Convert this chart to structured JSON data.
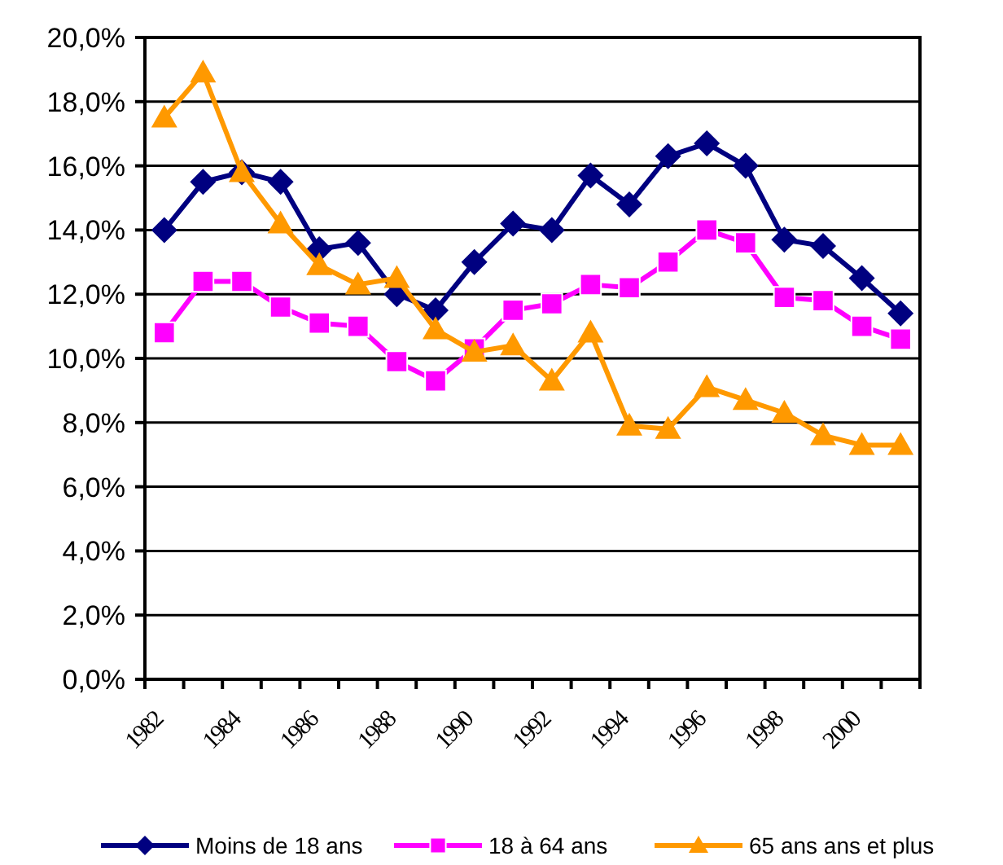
{
  "chart_data": {
    "type": "line",
    "categories": [
      "1982",
      null,
      "1984",
      null,
      "1986",
      null,
      "1988",
      null,
      "1990",
      null,
      "1992",
      null,
      "1994",
      null,
      "1996",
      null,
      "1998",
      null,
      "2000",
      null
    ],
    "series": [
      {
        "name": "Moins de 18 ans",
        "color": "#000080",
        "marker": "diamond",
        "values": [
          14.0,
          15.5,
          15.8,
          15.5,
          13.4,
          13.6,
          12.0,
          11.5,
          13.0,
          14.2,
          14.0,
          15.7,
          14.8,
          16.3,
          16.7,
          16.0,
          13.7,
          13.5,
          12.5,
          11.4
        ]
      },
      {
        "name": "18 à 64 ans",
        "color": "#ff00ff",
        "marker": "square",
        "values": [
          10.8,
          12.4,
          12.4,
          11.6,
          11.1,
          11.0,
          9.9,
          9.3,
          10.3,
          11.5,
          11.7,
          12.3,
          12.2,
          13.0,
          14.0,
          13.6,
          11.9,
          11.8,
          11.0,
          10.6
        ]
      },
      {
        "name": "65 ans ans et plus",
        "color": "#ff9900",
        "marker": "triangle",
        "values": [
          17.5,
          18.9,
          15.8,
          14.2,
          12.9,
          12.3,
          12.5,
          10.9,
          10.2,
          10.4,
          9.3,
          10.8,
          7.9,
          7.8,
          9.1,
          8.7,
          8.3,
          7.6,
          7.3,
          7.3
        ]
      }
    ],
    "ylim": [
      0,
      20
    ],
    "yticks": [
      {
        "value": 0,
        "label": "0,0%"
      },
      {
        "value": 2,
        "label": "2,0%"
      },
      {
        "value": 4,
        "label": "4,0%"
      },
      {
        "value": 6,
        "label": "6,0%"
      },
      {
        "value": 8,
        "label": "8,0%"
      },
      {
        "value": 10,
        "label": "10,0%"
      },
      {
        "value": 12,
        "label": "12,0%"
      },
      {
        "value": 14,
        "label": "14,0%"
      },
      {
        "value": 16,
        "label": "16,0%"
      },
      {
        "value": 18,
        "label": "18,0%"
      },
      {
        "value": 20,
        "label": "20,0%"
      }
    ],
    "grid": "y",
    "legend": "bottom",
    "line_style": "solid"
  }
}
